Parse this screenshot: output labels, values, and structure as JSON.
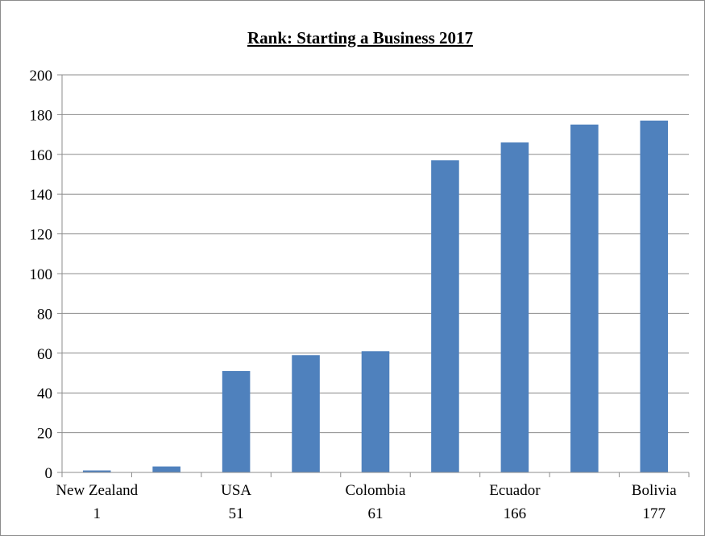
{
  "chart_data": {
    "type": "bar",
    "title": "Rank: Starting a Business 2017",
    "xlabel": "",
    "ylabel": "",
    "ylim": [
      0,
      200
    ],
    "yticks": [
      0,
      20,
      40,
      60,
      80,
      100,
      120,
      140,
      160,
      180,
      200
    ],
    "grid": true,
    "legend": "none",
    "bar_color": "#4f81bd",
    "categories": [
      [
        "New Zealand",
        "1"
      ],
      [
        "",
        ""
      ],
      [
        "USA",
        "51"
      ],
      [
        "",
        ""
      ],
      [
        "Colombia",
        "61"
      ],
      [
        "",
        ""
      ],
      [
        "Ecuador",
        "166"
      ],
      [
        "",
        ""
      ],
      [
        "Bolivia",
        "177"
      ]
    ],
    "values": [
      1,
      3,
      51,
      59,
      61,
      157,
      166,
      175,
      177
    ]
  }
}
